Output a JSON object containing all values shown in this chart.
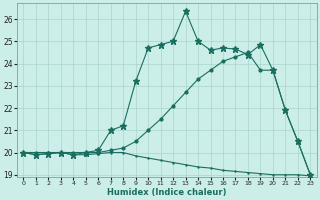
{
  "xlabel": "Humidex (Indice chaleur)",
  "bg_color": "#cceee8",
  "grid_color": "#aad4ce",
  "line_color": "#1a6e60",
  "xlim": [
    -0.5,
    23.5
  ],
  "ylim": [
    18.9,
    26.7
  ],
  "yticks": [
    19,
    20,
    21,
    22,
    23,
    24,
    25,
    26
  ],
  "xticks": [
    0,
    1,
    2,
    3,
    4,
    5,
    6,
    7,
    8,
    9,
    10,
    11,
    12,
    13,
    14,
    15,
    16,
    17,
    18,
    19,
    20,
    21,
    22,
    23
  ],
  "line1_x": [
    0,
    1,
    2,
    3,
    4,
    5,
    6,
    7,
    8,
    9,
    10,
    11,
    12,
    13,
    14,
    15,
    16,
    17,
    18,
    19,
    20,
    21,
    22,
    23
  ],
  "line1_y": [
    20.0,
    19.9,
    19.95,
    20.0,
    19.9,
    19.9,
    19.95,
    20.0,
    20.0,
    19.85,
    19.75,
    19.65,
    19.55,
    19.45,
    19.35,
    19.3,
    19.2,
    19.15,
    19.1,
    19.05,
    19.0,
    19.0,
    19.0,
    18.95
  ],
  "line2_x": [
    0,
    1,
    2,
    3,
    4,
    5,
    6,
    7,
    8,
    9,
    10,
    11,
    12,
    13,
    14,
    15,
    16,
    17,
    18,
    19,
    20,
    21,
    22,
    23
  ],
  "line2_y": [
    20.0,
    20.0,
    20.0,
    20.0,
    20.0,
    20.0,
    20.0,
    20.1,
    20.2,
    20.5,
    21.0,
    21.5,
    22.1,
    22.7,
    23.3,
    23.7,
    24.1,
    24.3,
    24.5,
    23.7,
    23.7,
    21.9,
    20.5,
    19.0
  ],
  "line3_x": [
    0,
    1,
    2,
    3,
    4,
    5,
    6,
    7,
    8,
    9,
    10,
    11,
    12,
    13,
    14,
    15,
    16,
    17,
    18,
    19,
    20,
    21,
    22,
    23
  ],
  "line3_y": [
    20.0,
    19.9,
    19.95,
    20.0,
    19.9,
    20.0,
    20.1,
    21.0,
    21.2,
    23.2,
    24.7,
    24.85,
    25.0,
    26.35,
    25.0,
    24.6,
    24.7,
    24.65,
    24.4,
    24.85,
    23.7,
    21.9,
    20.5,
    19.0
  ]
}
